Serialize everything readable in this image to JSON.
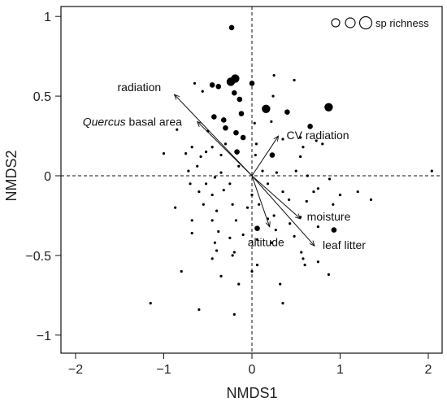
{
  "chart_data": {
    "type": "scatter",
    "xlabel": "NMDS1",
    "ylabel": "NMDS2",
    "xlim": [
      -2.1,
      2.1
    ],
    "ylim": [
      -1.1,
      1.05
    ],
    "x_ticks": [
      -2,
      -1,
      0,
      1,
      2
    ],
    "x_tick_labels": [
      "−2",
      "−1",
      "0",
      "1",
      "2"
    ],
    "y_ticks": [
      -1,
      -0.5,
      0,
      0.5,
      1
    ],
    "y_tick_labels": [
      "−1",
      "−0.5",
      "0",
      "0.5",
      "1"
    ],
    "reference_lines": {
      "x": 0,
      "y": 0,
      "style": "dashed"
    },
    "legend": {
      "label": "sp richness",
      "position": "top-right",
      "sizes": [
        2,
        3,
        4
      ]
    },
    "vectors": [
      {
        "label": "radiation",
        "x": -0.88,
        "y": 0.51,
        "italic_part": ""
      },
      {
        "label": "basal area",
        "italic_part": "Quercus",
        "x": -0.62,
        "y": 0.34
      },
      {
        "label": "CV radiation",
        "x": 0.3,
        "y": 0.25,
        "italic_part": ""
      },
      {
        "label": "moisture",
        "x": 0.55,
        "y": -0.27,
        "italic_part": ""
      },
      {
        "label": "leaf litter",
        "x": 0.71,
        "y": -0.44,
        "italic_part": ""
      },
      {
        "label": "altitude",
        "x": 0.2,
        "y": -0.32,
        "italic_part": ""
      }
    ],
    "points": [
      {
        "x": -0.23,
        "y": 0.93,
        "s": 2
      },
      {
        "x": -0.65,
        "y": 0.58,
        "s": 1
      },
      {
        "x": -0.45,
        "y": 0.57,
        "s": 2
      },
      {
        "x": -0.38,
        "y": 0.56,
        "s": 2
      },
      {
        "x": -0.24,
        "y": 0.59,
        "s": 3
      },
      {
        "x": -0.19,
        "y": 0.61,
        "s": 3
      },
      {
        "x": 0.0,
        "y": 0.58,
        "s": 2
      },
      {
        "x": 0.25,
        "y": 0.63,
        "s": 1
      },
      {
        "x": 0.48,
        "y": 0.6,
        "s": 1
      },
      {
        "x": -0.56,
        "y": 0.53,
        "s": 1
      },
      {
        "x": -0.2,
        "y": 0.52,
        "s": 2
      },
      {
        "x": -0.14,
        "y": 0.48,
        "s": 2
      },
      {
        "x": 0.24,
        "y": 0.5,
        "s": 1
      },
      {
        "x": -0.43,
        "y": 0.37,
        "s": 2
      },
      {
        "x": -0.32,
        "y": 0.35,
        "s": 2
      },
      {
        "x": -0.12,
        "y": 0.39,
        "s": 2
      },
      {
        "x": 0.16,
        "y": 0.42,
        "s": 3
      },
      {
        "x": 0.4,
        "y": 0.4,
        "s": 2
      },
      {
        "x": 0.87,
        "y": 0.43,
        "s": 3
      },
      {
        "x": 0.03,
        "y": 0.33,
        "s": 1
      },
      {
        "x": 0.22,
        "y": 0.34,
        "s": 1
      },
      {
        "x": 0.66,
        "y": 0.31,
        "s": 2
      },
      {
        "x": -0.85,
        "y": 0.29,
        "s": 1
      },
      {
        "x": -0.3,
        "y": 0.3,
        "s": 2
      },
      {
        "x": -0.5,
        "y": 0.28,
        "s": 1
      },
      {
        "x": -0.18,
        "y": 0.27,
        "s": 2
      },
      {
        "x": -0.1,
        "y": 0.24,
        "s": 2
      },
      {
        "x": 0.05,
        "y": 0.2,
        "s": 1
      },
      {
        "x": 0.35,
        "y": 0.23,
        "s": 1
      },
      {
        "x": 0.55,
        "y": 0.24,
        "s": 1
      },
      {
        "x": 0.73,
        "y": 0.22,
        "s": 1
      },
      {
        "x": 0.8,
        "y": 0.2,
        "s": 1
      },
      {
        "x": -0.3,
        "y": 0.2,
        "s": 1
      },
      {
        "x": -0.45,
        "y": 0.18,
        "s": 1
      },
      {
        "x": -0.68,
        "y": 0.18,
        "s": 1
      },
      {
        "x": 0.58,
        "y": 0.18,
        "s": 1
      },
      {
        "x": -0.52,
        "y": 0.15,
        "s": 1
      },
      {
        "x": -0.75,
        "y": 0.14,
        "s": 1
      },
      {
        "x": -0.35,
        "y": 0.13,
        "s": 1
      },
      {
        "x": -0.17,
        "y": 0.15,
        "s": 2
      },
      {
        "x": 0.04,
        "y": 0.13,
        "s": 1
      },
      {
        "x": 0.55,
        "y": 0.12,
        "s": 1
      },
      {
        "x": 0.23,
        "y": 0.13,
        "s": 2
      },
      {
        "x": -1.0,
        "y": 0.14,
        "s": 1
      },
      {
        "x": -0.58,
        "y": 0.12,
        "s": 1
      },
      {
        "x": -0.62,
        "y": 0.06,
        "s": 1
      },
      {
        "x": -0.15,
        "y": 0.06,
        "s": 1
      },
      {
        "x": 0.12,
        "y": 0.03,
        "s": 1
      },
      {
        "x": -0.72,
        "y": 0.03,
        "s": 1
      },
      {
        "x": 0.5,
        "y": 0.03,
        "s": 1
      },
      {
        "x": -0.35,
        "y": 0.02,
        "s": 1
      },
      {
        "x": 0.28,
        "y": 0.02,
        "s": 1
      },
      {
        "x": 0.63,
        "y": 0.0,
        "s": 1
      },
      {
        "x": 2.04,
        "y": 0.03,
        "s": 1
      },
      {
        "x": -0.42,
        "y": -0.01,
        "s": 1
      },
      {
        "x": -0.7,
        "y": -0.05,
        "s": 1
      },
      {
        "x": -0.52,
        "y": -0.05,
        "s": 1
      },
      {
        "x": -0.25,
        "y": -0.05,
        "s": 1
      },
      {
        "x": 0.18,
        "y": -0.05,
        "s": 1
      },
      {
        "x": 0.88,
        "y": -0.02,
        "s": 1
      },
      {
        "x": 0.7,
        "y": -0.1,
        "s": 1
      },
      {
        "x": -0.6,
        "y": -0.1,
        "s": 1
      },
      {
        "x": -0.45,
        "y": -0.12,
        "s": 1
      },
      {
        "x": -0.32,
        "y": -0.09,
        "s": 1
      },
      {
        "x": 0.0,
        "y": -0.12,
        "s": 1
      },
      {
        "x": 0.08,
        "y": -0.18,
        "s": 1
      },
      {
        "x": 0.35,
        "y": -0.1,
        "s": 1
      },
      {
        "x": 0.75,
        "y": -0.08,
        "s": 1
      },
      {
        "x": 1.2,
        "y": -0.1,
        "s": 1
      },
      {
        "x": 1.35,
        "y": -0.15,
        "s": 1
      },
      {
        "x": -0.55,
        "y": -0.18,
        "s": 1
      },
      {
        "x": -0.22,
        "y": -0.18,
        "s": 1
      },
      {
        "x": -0.05,
        "y": -0.2,
        "s": 1
      },
      {
        "x": 0.42,
        "y": -0.15,
        "s": 1
      },
      {
        "x": 0.62,
        "y": -0.16,
        "s": 1
      },
      {
        "x": 0.92,
        "y": -0.18,
        "s": 1
      },
      {
        "x": 1.0,
        "y": -0.12,
        "s": 1
      },
      {
        "x": -0.87,
        "y": -0.2,
        "s": 1
      },
      {
        "x": -0.4,
        "y": -0.22,
        "s": 1
      },
      {
        "x": 0.25,
        "y": -0.25,
        "s": 1
      },
      {
        "x": 0.55,
        "y": -0.26,
        "s": 1
      },
      {
        "x": -0.45,
        "y": -0.28,
        "s": 1
      },
      {
        "x": -0.68,
        "y": -0.28,
        "s": 1
      },
      {
        "x": -0.18,
        "y": -0.28,
        "s": 1
      },
      {
        "x": 0.18,
        "y": -0.27,
        "s": 1
      },
      {
        "x": 0.43,
        "y": -0.3,
        "s": 1
      },
      {
        "x": 0.75,
        "y": -0.32,
        "s": 1
      },
      {
        "x": 0.06,
        "y": -0.33,
        "s": 2
      },
      {
        "x": 0.27,
        "y": -0.34,
        "s": 1
      },
      {
        "x": 0.93,
        "y": -0.34,
        "s": 2
      },
      {
        "x": -0.38,
        "y": -0.35,
        "s": 1
      },
      {
        "x": -0.68,
        "y": -0.36,
        "s": 1
      },
      {
        "x": -0.1,
        "y": -0.37,
        "s": 1
      },
      {
        "x": 0.48,
        "y": -0.38,
        "s": 1
      },
      {
        "x": -0.25,
        "y": -0.39,
        "s": 1
      },
      {
        "x": 0.06,
        "y": -0.4,
        "s": 1
      },
      {
        "x": -0.42,
        "y": -0.42,
        "s": 1
      },
      {
        "x": 0.22,
        "y": -0.42,
        "s": 1
      },
      {
        "x": -0.2,
        "y": -0.48,
        "s": 1
      },
      {
        "x": 0.56,
        "y": -0.48,
        "s": 1
      },
      {
        "x": -0.22,
        "y": -0.5,
        "s": 1
      },
      {
        "x": -0.45,
        "y": -0.52,
        "s": 1
      },
      {
        "x": -0.4,
        "y": -0.47,
        "s": 1
      },
      {
        "x": 0.75,
        "y": -0.54,
        "s": 1
      },
      {
        "x": 0.58,
        "y": -0.52,
        "s": 1
      },
      {
        "x": 0.6,
        "y": -0.56,
        "s": 1
      },
      {
        "x": 0.06,
        "y": -0.56,
        "s": 1
      },
      {
        "x": 0.0,
        "y": -0.6,
        "s": 1
      },
      {
        "x": -0.35,
        "y": -0.63,
        "s": 1
      },
      {
        "x": 0.32,
        "y": -0.68,
        "s": 1
      },
      {
        "x": -0.8,
        "y": -0.6,
        "s": 1
      },
      {
        "x": -0.15,
        "y": -0.68,
        "s": 1
      },
      {
        "x": -1.15,
        "y": -0.8,
        "s": 1
      },
      {
        "x": -0.6,
        "y": -0.84,
        "s": 1
      },
      {
        "x": -0.2,
        "y": -0.87,
        "s": 1
      },
      {
        "x": 0.35,
        "y": -0.8,
        "s": 1
      },
      {
        "x": 0.87,
        "y": -0.62,
        "s": 1
      }
    ]
  }
}
